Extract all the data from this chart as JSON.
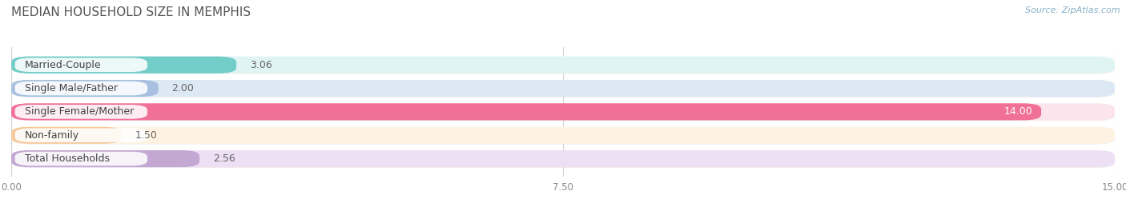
{
  "title": "MEDIAN HOUSEHOLD SIZE IN MEMPHIS",
  "source": "Source: ZipAtlas.com",
  "categories": [
    "Married-Couple",
    "Single Male/Father",
    "Single Female/Mother",
    "Non-family",
    "Total Households"
  ],
  "values": [
    3.06,
    2.0,
    14.0,
    1.5,
    2.56
  ],
  "bar_colors": [
    "#72ccc8",
    "#a8c0e0",
    "#f07098",
    "#f5c99a",
    "#c4a8d4"
  ],
  "bar_bg_colors": [
    "#e0f4f3",
    "#dde8f5",
    "#fce4ec",
    "#fef3e2",
    "#ede0f5"
  ],
  "xlim": [
    0,
    15.0
  ],
  "xticks": [
    0.0,
    7.5,
    15.0
  ],
  "xtick_labels": [
    "0.00",
    "7.50",
    "15.00"
  ],
  "value_labels": [
    "3.06",
    "2.00",
    "14.00",
    "1.50",
    "2.56"
  ],
  "background_color": "#ffffff",
  "title_color": "#555555",
  "title_fontsize": 11,
  "label_fontsize": 9,
  "value_fontsize": 9,
  "source_color": "#8ab0c8"
}
